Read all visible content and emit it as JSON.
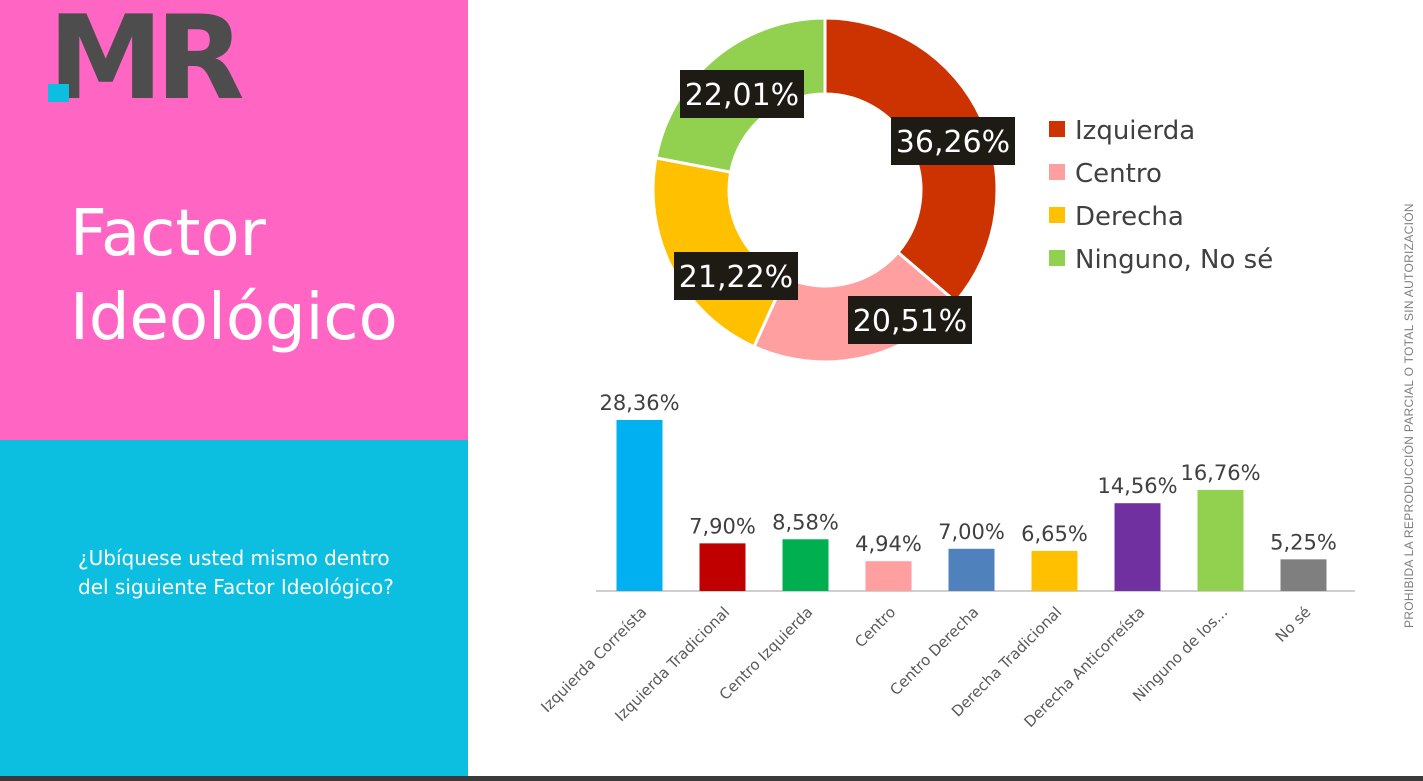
{
  "brand": {
    "logo_text": "MR",
    "colors": {
      "pink": "#ff66c4",
      "cyan": "#0cbfe0",
      "logo_gray": "#4d4d4d",
      "logo_cyan": "#0cbfe0"
    }
  },
  "title": {
    "line1": "Factor",
    "line2": "Ideológico"
  },
  "question": "¿Ubíquese usted mismo dentro del siguiente Factor Ideológico?",
  "watermark": "PROHIBIDA LA REPRODUCCIÓN PARCIAL O TOTAL SIN AUTORIZACIÓN",
  "chart_data": [
    {
      "type": "pie",
      "variant": "donut",
      "categories": [
        "Izquierda",
        "Centro",
        "Derecha",
        "Ninguno, No sé"
      ],
      "values": [
        36.26,
        20.51,
        21.22,
        22.01
      ],
      "labels": [
        "36,26%",
        "20,51%",
        "21,22%",
        "22,01%"
      ],
      "colors": [
        "#cc3300",
        "#ff9f9f",
        "#ffc000",
        "#92d050"
      ],
      "legend": "right"
    },
    {
      "type": "bar",
      "categories": [
        "Izquierda Correísta",
        "Izquierda Tradicional",
        "Centro Izquierda",
        "Centro",
        "Centro Derecha",
        "Derecha Tradicional",
        "Derecha Anticorreísta",
        "Ninguno de los...",
        "No sé"
      ],
      "values": [
        28.36,
        7.9,
        8.58,
        4.94,
        7.0,
        6.65,
        14.56,
        16.76,
        5.25
      ],
      "labels": [
        "28,36%",
        "7,90%",
        "8,58%",
        "4,94%",
        "7,00%",
        "6,65%",
        "14,56%",
        "16,76%",
        "5,25%"
      ],
      "colors": [
        "#00b0f0",
        "#c00000",
        "#00b050",
        "#ff9f9f",
        "#4f81bd",
        "#ffc000",
        "#7030a0",
        "#92d050",
        "#7f7f7f"
      ],
      "ylim": [
        0,
        30
      ],
      "grid": false
    }
  ]
}
